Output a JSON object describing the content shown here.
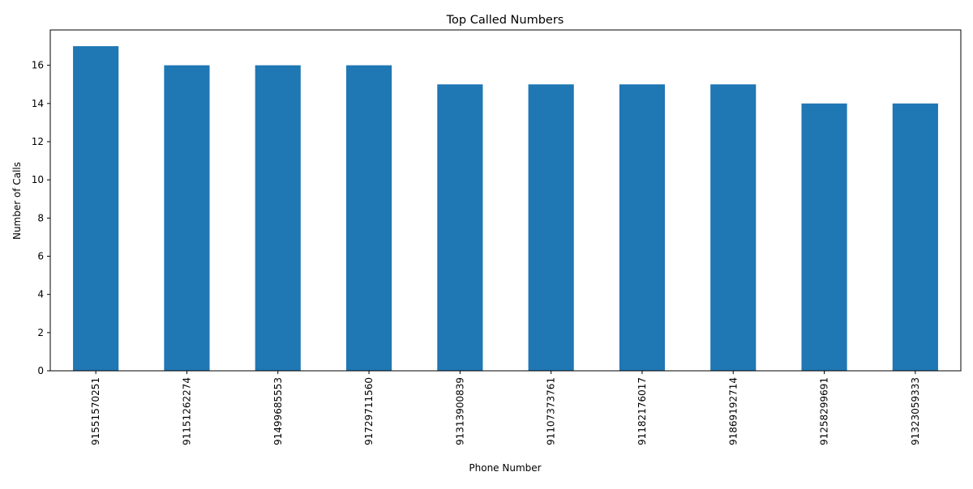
{
  "chart_data": {
    "type": "bar",
    "title": "Top Called Numbers",
    "xlabel": "Phone Number",
    "ylabel": "Number of Calls",
    "categories": [
      "91551570251",
      "91151262274",
      "91499685553",
      "91729711560",
      "91313900839",
      "91107373761",
      "91182176017",
      "91869192714",
      "91258299691",
      "91323059333"
    ],
    "values": [
      17,
      16,
      16,
      16,
      15,
      15,
      15,
      15,
      14,
      14
    ],
    "ylim": [
      0,
      17.85
    ],
    "yticks": [
      "0",
      "2",
      "4",
      "6",
      "8",
      "10",
      "12",
      "14",
      "16"
    ],
    "grid": false,
    "legend": "none",
    "bar_color": "#1f77b4"
  }
}
